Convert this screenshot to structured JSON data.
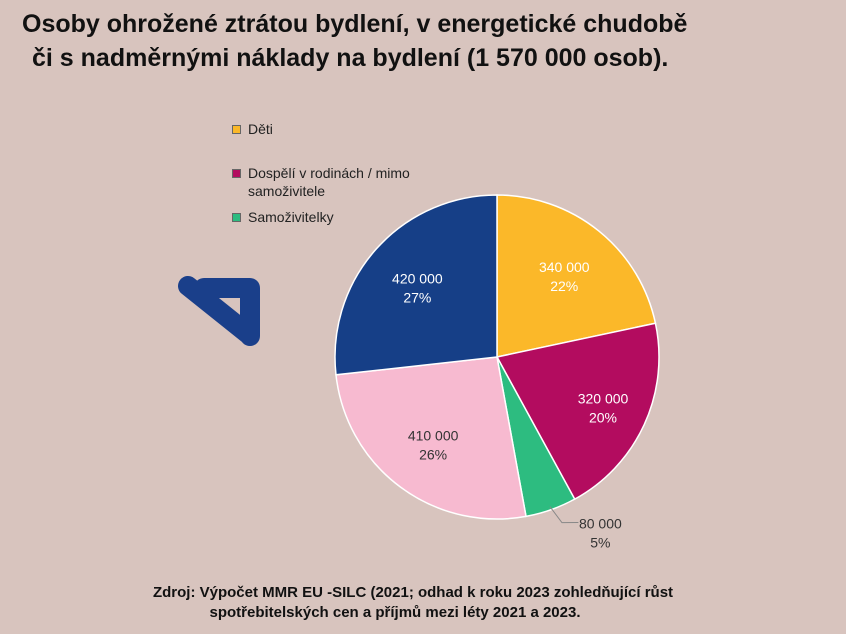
{
  "title": {
    "line1": "Osoby ohrožené ztrátou bydlení, v energetické chudobě",
    "line2": "či s nadměrnými náklady na bydlení (1 570 000 osob)."
  },
  "legend": [
    {
      "label": "Děti",
      "color": "#fbb829"
    },
    {
      "label": "Dospělí v rodinách / mimo samoživitele",
      "color": "#b30c5f"
    },
    {
      "label": "Samoživitelky",
      "color": "#2dbc80"
    }
  ],
  "icons": {
    "arrow": "arrow-down-right-icon",
    "arrow_color": "#1a3f8a"
  },
  "chart_data": {
    "type": "pie",
    "title": "Osoby ohrožené ztrátou bydlení, v energetické chudobě či s nadměrnými náklady na bydlení (1 570 000 osob).",
    "slices": [
      {
        "value": 340000,
        "value_label": "340 000",
        "percent_label": "22%",
        "color": "#fbb829",
        "label_color": "#ffffff"
      },
      {
        "value": 320000,
        "value_label": "320 000",
        "percent_label": "20%",
        "color": "#b30c5f",
        "label_color": "#ffffff"
      },
      {
        "value": 80000,
        "value_label": "80 000",
        "percent_label": "5%",
        "color": "#2dbc80",
        "label_color": "#333333"
      },
      {
        "value": 410000,
        "value_label": "410 000",
        "percent_label": "26%",
        "color": "#f7bad0",
        "label_color": "#333333"
      },
      {
        "value": 420000,
        "value_label": "420 000",
        "percent_label": "27%",
        "color": "#163f87",
        "label_color": "#ffffff"
      }
    ],
    "start_angle": "12 o'clock",
    "direction": "clockwise",
    "legend_position": "top-left"
  },
  "source": {
    "line1": "Zdroj: Výpočet MMR EU  -SILC (2021; odhad k roku 2023 zohledňující růst",
    "line2": "spotřebitelských cen a příjmů mezi léty 2021 a 2023."
  }
}
